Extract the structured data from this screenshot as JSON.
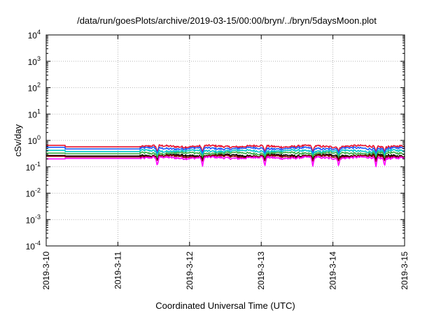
{
  "chart_data": {
    "type": "line",
    "title": "/data/run/goesPlots/archive/2019-03-15/00:00/bryn/../bryn/5daysMoon.plot",
    "xlabel": "Coordinated Universal Time (UTC)",
    "ylabel": "cSv/day",
    "yscale": "log",
    "ylim": [
      0.0001,
      10000
    ],
    "xlim": [
      "2019-03-10",
      "2019-03-15"
    ],
    "x_ticks": [
      "2019-3-10",
      "2019-3-11",
      "2019-3-12",
      "2019-3-13",
      "2019-3-14",
      "2019-3-15"
    ],
    "y_ticks": [
      {
        "base": "10",
        "exp": "-4"
      },
      {
        "base": "10",
        "exp": "-3"
      },
      {
        "base": "10",
        "exp": "-2"
      },
      {
        "base": "10",
        "exp": "-1"
      },
      {
        "base": "10",
        "exp": "0"
      },
      {
        "base": "10",
        "exp": "1"
      },
      {
        "base": "10",
        "exp": "2"
      },
      {
        "base": "10",
        "exp": "3"
      },
      {
        "base": "10",
        "exp": "4"
      }
    ],
    "grid": true,
    "series": [
      {
        "color": "#e8112d",
        "initial_value": 0.65,
        "typical_value": 0.6,
        "dip_value": 0.35
      },
      {
        "color": "#1f5bff",
        "initial_value": 0.55,
        "typical_value": 0.5,
        "dip_value": 0.3
      },
      {
        "color": "#00c8c8",
        "initial_value": 0.42,
        "typical_value": 0.4,
        "dip_value": 0.25
      },
      {
        "color": "#3cb043",
        "initial_value": 0.33,
        "typical_value": 0.33,
        "dip_value": 0.22
      },
      {
        "color": "#000000",
        "initial_value": 0.27,
        "typical_value": 0.27,
        "dip_value": 0.18
      },
      {
        "color": "#8b0000",
        "initial_value": 0.25,
        "typical_value": 0.25,
        "dip_value": 0.16
      },
      {
        "color": "#ff00ff",
        "initial_value": 0.2,
        "typical_value": 0.22,
        "dip_value": 0.1
      }
    ]
  }
}
